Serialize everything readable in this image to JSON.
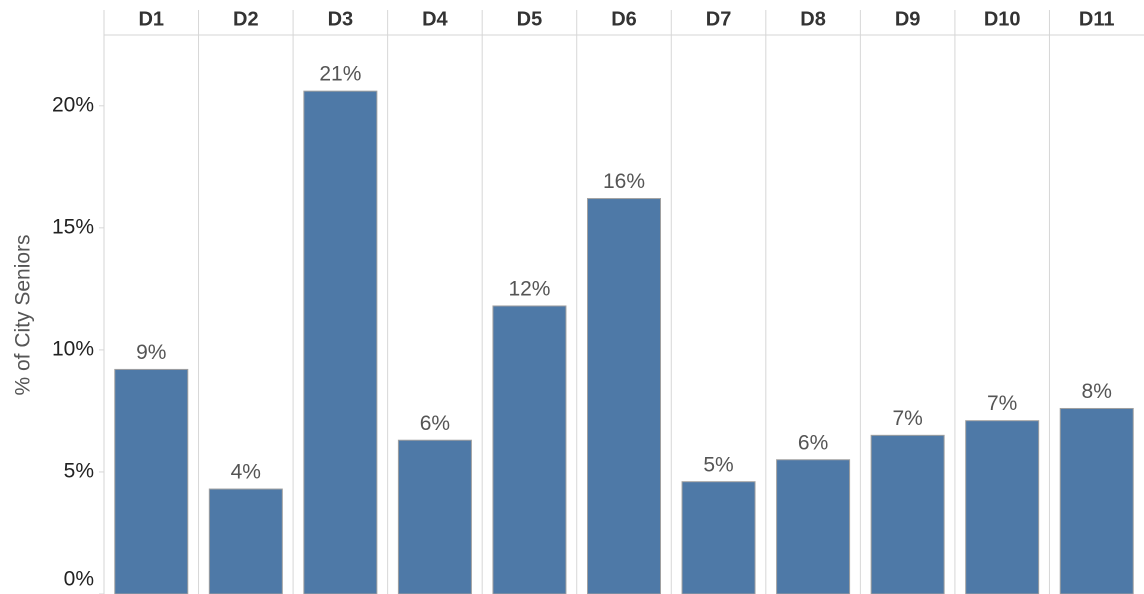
{
  "chart_data": {
    "type": "bar",
    "y_label": "% of City Seniors",
    "categories": [
      "D1",
      "D2",
      "D3",
      "D4",
      "D5",
      "D6",
      "D7",
      "D8",
      "D9",
      "D10",
      "D11"
    ],
    "values": [
      9.2,
      4.3,
      20.6,
      6.3,
      11.8,
      16.2,
      4.6,
      5.5,
      6.5,
      7.1,
      7.6
    ],
    "value_labels": [
      "9%",
      "4%",
      "21%",
      "6%",
      "12%",
      "16%",
      "5%",
      "6%",
      "7%",
      "7%",
      "8%"
    ],
    "color": "#4e79a7",
    "ylim": [
      0,
      22.9
    ],
    "yticks": [
      {
        "value": 0,
        "label": "0%"
      },
      {
        "value": 5,
        "label": "5%"
      },
      {
        "value": 10,
        "label": "10%"
      },
      {
        "value": 15,
        "label": "15%"
      },
      {
        "value": 20,
        "label": "20%"
      }
    ],
    "grid": false
  }
}
